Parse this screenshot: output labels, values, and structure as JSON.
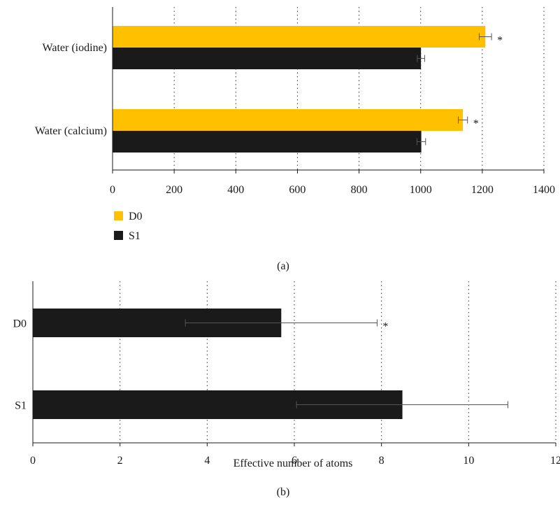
{
  "chart_data": [
    {
      "type": "bar",
      "orientation": "horizontal",
      "panel_label": "(a)",
      "title": "",
      "xlabel": "",
      "ylabel": "",
      "categories": [
        "Water (iodine)",
        "Water (calcium)"
      ],
      "series": [
        {
          "name": "D0",
          "color": "#FFC000",
          "values": [
            1210,
            1137
          ],
          "errors": [
            20,
            15
          ],
          "annotations": [
            "*",
            "*"
          ]
        },
        {
          "name": "S1",
          "color": "#1a1a1a",
          "values": [
            1001,
            1002
          ],
          "errors": [
            12,
            14
          ],
          "annotations": [
            "",
            ""
          ]
        }
      ],
      "xlim": [
        0,
        1400
      ],
      "xticks": [
        "0",
        "200",
        "400",
        "600",
        "800",
        "1000",
        "1200",
        "1400"
      ],
      "grid": "vertical dotted",
      "legend": "bottom-left"
    },
    {
      "type": "bar",
      "orientation": "horizontal",
      "panel_label": "(b)",
      "title": "",
      "xlabel": "Effective number of atoms",
      "ylabel": "",
      "categories": [
        "D0",
        "S1"
      ],
      "series": [
        {
          "color": "#1a1a1a",
          "values": [
            5.7,
            8.48
          ],
          "error_low": [
            3.5,
            6.05
          ],
          "error_high": [
            7.9,
            10.9
          ],
          "annotations": [
            "*",
            ""
          ]
        }
      ],
      "xlim": [
        0,
        12
      ],
      "xticks": [
        "0",
        "2",
        "4",
        "6",
        "8",
        "10",
        "12"
      ],
      "grid": "vertical dotted",
      "legend": "none"
    }
  ]
}
